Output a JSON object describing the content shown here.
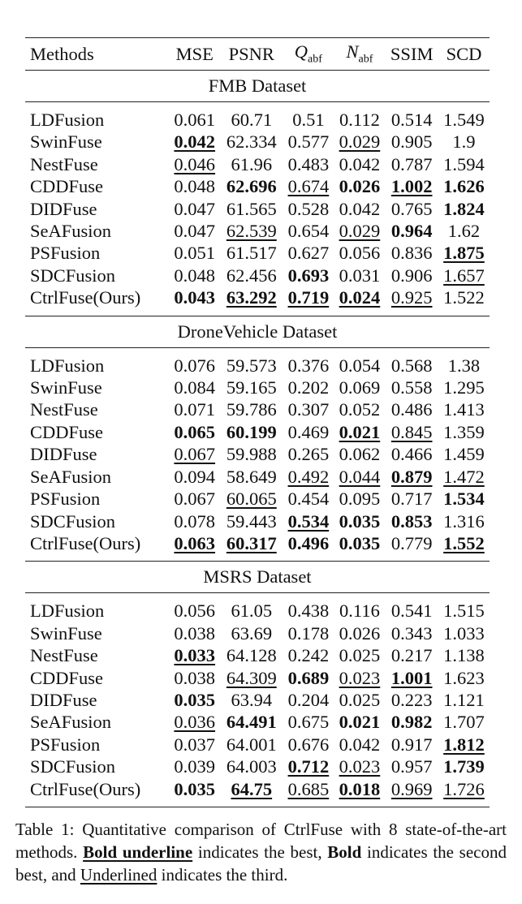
{
  "table": {
    "headers": [
      {
        "text": "Methods"
      },
      {
        "text": "MSE"
      },
      {
        "text": "PSNR"
      },
      {
        "text": "Q",
        "sub": "abf",
        "italic": true
      },
      {
        "text": "N",
        "sub": "abf",
        "italic": true
      },
      {
        "text": "SSIM"
      },
      {
        "text": "SCD"
      }
    ],
    "sections": [
      {
        "title": "FMB Dataset",
        "rows": [
          {
            "method": "LDFusion",
            "cells": [
              [
                "0.061",
                ""
              ],
              [
                "60.71",
                ""
              ],
              [
                "0.51",
                ""
              ],
              [
                "0.112",
                ""
              ],
              [
                "0.514",
                ""
              ],
              [
                "1.549",
                ""
              ]
            ]
          },
          {
            "method": "SwinFuse",
            "cells": [
              [
                "0.042",
                "b1"
              ],
              [
                "62.334",
                ""
              ],
              [
                "0.577",
                ""
              ],
              [
                "0.029",
                "b3"
              ],
              [
                "0.905",
                ""
              ],
              [
                "1.9",
                ""
              ]
            ]
          },
          {
            "method": "NestFuse",
            "cells": [
              [
                "0.046",
                "b3"
              ],
              [
                "61.96",
                ""
              ],
              [
                "0.483",
                ""
              ],
              [
                "0.042",
                ""
              ],
              [
                "0.787",
                ""
              ],
              [
                "1.594",
                ""
              ]
            ]
          },
          {
            "method": "CDDFuse",
            "cells": [
              [
                "0.048",
                ""
              ],
              [
                "62.696",
                "b2"
              ],
              [
                "0.674",
                "b3"
              ],
              [
                "0.026",
                "b2"
              ],
              [
                "1.002",
                "b1"
              ],
              [
                "1.626",
                "b2"
              ]
            ]
          },
          {
            "method": "DIDFuse",
            "cells": [
              [
                "0.047",
                ""
              ],
              [
                "61.565",
                ""
              ],
              [
                "0.528",
                ""
              ],
              [
                "0.042",
                ""
              ],
              [
                "0.765",
                ""
              ],
              [
                "1.824",
                "b2"
              ]
            ]
          },
          {
            "method": "SeAFusion",
            "cells": [
              [
                "0.047",
                ""
              ],
              [
                "62.539",
                "b3"
              ],
              [
                "0.654",
                ""
              ],
              [
                "0.029",
                "b3"
              ],
              [
                "0.964",
                "b2"
              ],
              [
                "1.62",
                ""
              ]
            ]
          },
          {
            "method": "PSFusion",
            "cells": [
              [
                "0.051",
                ""
              ],
              [
                "61.517",
                ""
              ],
              [
                "0.627",
                ""
              ],
              [
                "0.056",
                ""
              ],
              [
                "0.836",
                ""
              ],
              [
                "1.875",
                "b1"
              ]
            ]
          },
          {
            "method": "SDCFusion",
            "cells": [
              [
                "0.048",
                ""
              ],
              [
                "62.456",
                ""
              ],
              [
                "0.693",
                "b2"
              ],
              [
                "0.031",
                ""
              ],
              [
                "0.906",
                ""
              ],
              [
                "1.657",
                "b3"
              ]
            ]
          },
          {
            "method": "CtrlFuse(Ours)",
            "cells": [
              [
                "0.043",
                "b2"
              ],
              [
                "63.292",
                "b1"
              ],
              [
                "0.719",
                "b1"
              ],
              [
                "0.024",
                "b1"
              ],
              [
                "0.925",
                "b3"
              ],
              [
                "1.522",
                ""
              ]
            ]
          }
        ]
      },
      {
        "title": "DroneVehicle Dataset",
        "rows": [
          {
            "method": "LDFusion",
            "cells": [
              [
                "0.076",
                ""
              ],
              [
                "59.573",
                ""
              ],
              [
                "0.376",
                ""
              ],
              [
                "0.054",
                ""
              ],
              [
                "0.568",
                ""
              ],
              [
                "1.38",
                ""
              ]
            ]
          },
          {
            "method": "SwinFuse",
            "cells": [
              [
                "0.084",
                ""
              ],
              [
                "59.165",
                ""
              ],
              [
                "0.202",
                ""
              ],
              [
                "0.069",
                ""
              ],
              [
                "0.558",
                ""
              ],
              [
                "1.295",
                ""
              ]
            ]
          },
          {
            "method": "NestFuse",
            "cells": [
              [
                "0.071",
                ""
              ],
              [
                "59.786",
                ""
              ],
              [
                "0.307",
                ""
              ],
              [
                "0.052",
                ""
              ],
              [
                "0.486",
                ""
              ],
              [
                "1.413",
                ""
              ]
            ]
          },
          {
            "method": "CDDFuse",
            "cells": [
              [
                "0.065",
                "b2"
              ],
              [
                "60.199",
                "b2"
              ],
              [
                "0.469",
                ""
              ],
              [
                "0.021",
                "b1"
              ],
              [
                "0.845",
                "b3"
              ],
              [
                "1.359",
                ""
              ]
            ]
          },
          {
            "method": "DIDFuse",
            "cells": [
              [
                "0.067",
                "b3"
              ],
              [
                "59.988",
                ""
              ],
              [
                "0.265",
                ""
              ],
              [
                "0.062",
                ""
              ],
              [
                "0.466",
                ""
              ],
              [
                "1.459",
                ""
              ]
            ]
          },
          {
            "method": "SeAFusion",
            "cells": [
              [
                "0.094",
                ""
              ],
              [
                "58.649",
                ""
              ],
              [
                "0.492",
                "b3"
              ],
              [
                "0.044",
                "b3"
              ],
              [
                "0.879",
                "b1"
              ],
              [
                "1.472",
                "b3"
              ]
            ]
          },
          {
            "method": "PSFusion",
            "cells": [
              [
                "0.067",
                ""
              ],
              [
                "60.065",
                "b3"
              ],
              [
                "0.454",
                ""
              ],
              [
                "0.095",
                ""
              ],
              [
                "0.717",
                ""
              ],
              [
                "1.534",
                "b2"
              ]
            ]
          },
          {
            "method": "SDCFusion",
            "cells": [
              [
                "0.078",
                ""
              ],
              [
                "59.443",
                ""
              ],
              [
                "0.534",
                "b1"
              ],
              [
                "0.035",
                "b2"
              ],
              [
                "0.853",
                "b2"
              ],
              [
                "1.316",
                ""
              ]
            ]
          },
          {
            "method": "CtrlFuse(Ours)",
            "cells": [
              [
                "0.063",
                "b1"
              ],
              [
                "60.317",
                "b1"
              ],
              [
                "0.496",
                "b2"
              ],
              [
                "0.035",
                "b2"
              ],
              [
                "0.779",
                ""
              ],
              [
                "1.552",
                "b1"
              ]
            ]
          }
        ]
      },
      {
        "title": "MSRS Dataset",
        "rows": [
          {
            "method": "LDFusion",
            "cells": [
              [
                "0.056",
                ""
              ],
              [
                "61.05",
                ""
              ],
              [
                "0.438",
                ""
              ],
              [
                "0.116",
                ""
              ],
              [
                "0.541",
                ""
              ],
              [
                "1.515",
                ""
              ]
            ]
          },
          {
            "method": "SwinFuse",
            "cells": [
              [
                "0.038",
                ""
              ],
              [
                "63.69",
                ""
              ],
              [
                "0.178",
                ""
              ],
              [
                "0.026",
                ""
              ],
              [
                "0.343",
                ""
              ],
              [
                "1.033",
                ""
              ]
            ]
          },
          {
            "method": "NestFuse",
            "cells": [
              [
                "0.033",
                "b1"
              ],
              [
                "64.128",
                ""
              ],
              [
                "0.242",
                ""
              ],
              [
                "0.025",
                ""
              ],
              [
                "0.217",
                ""
              ],
              [
                "1.138",
                ""
              ]
            ]
          },
          {
            "method": "CDDFuse",
            "cells": [
              [
                "0.038",
                ""
              ],
              [
                "64.309",
                "b3"
              ],
              [
                "0.689",
                "b2"
              ],
              [
                "0.023",
                "b3"
              ],
              [
                "1.001",
                "b1"
              ],
              [
                "1.623",
                ""
              ]
            ]
          },
          {
            "method": "DIDFuse",
            "cells": [
              [
                "0.035",
                "b2"
              ],
              [
                "63.94",
                ""
              ],
              [
                "0.204",
                ""
              ],
              [
                "0.025",
                ""
              ],
              [
                "0.223",
                ""
              ],
              [
                "1.121",
                ""
              ]
            ]
          },
          {
            "method": "SeAFusion",
            "cells": [
              [
                "0.036",
                "b3"
              ],
              [
                "64.491",
                "b2"
              ],
              [
                "0.675",
                ""
              ],
              [
                "0.021",
                "b2"
              ],
              [
                "0.982",
                "b2"
              ],
              [
                "1.707",
                ""
              ]
            ]
          },
          {
            "method": "PSFusion",
            "cells": [
              [
                "0.037",
                ""
              ],
              [
                "64.001",
                ""
              ],
              [
                "0.676",
                ""
              ],
              [
                "0.042",
                ""
              ],
              [
                "0.917",
                ""
              ],
              [
                "1.812",
                "b1"
              ]
            ]
          },
          {
            "method": "SDCFusion",
            "cells": [
              [
                "0.039",
                ""
              ],
              [
                "64.003",
                ""
              ],
              [
                "0.712",
                "b1"
              ],
              [
                "0.023",
                "b3"
              ],
              [
                "0.957",
                ""
              ],
              [
                "1.739",
                "b2"
              ]
            ]
          },
          {
            "method": "CtrlFuse(Ours)",
            "cells": [
              [
                "0.035",
                "b2"
              ],
              [
                "64.75",
                "b1"
              ],
              [
                "0.685",
                "b3"
              ],
              [
                "0.018",
                "b1"
              ],
              [
                "0.969",
                "b3"
              ],
              [
                "1.726",
                "b3"
              ]
            ]
          }
        ]
      }
    ]
  },
  "caption": {
    "prefix": "Table 1: Quantitative comparison of CtrlFuse with 8 state-of-the-art methods. ",
    "bold_underline": "Bold underline",
    "mid1": " indicates the best, ",
    "bold": "Bold",
    "mid2": " indicates the second best, and ",
    "underlined": "Underlined",
    "suffix": " indicates the third."
  }
}
